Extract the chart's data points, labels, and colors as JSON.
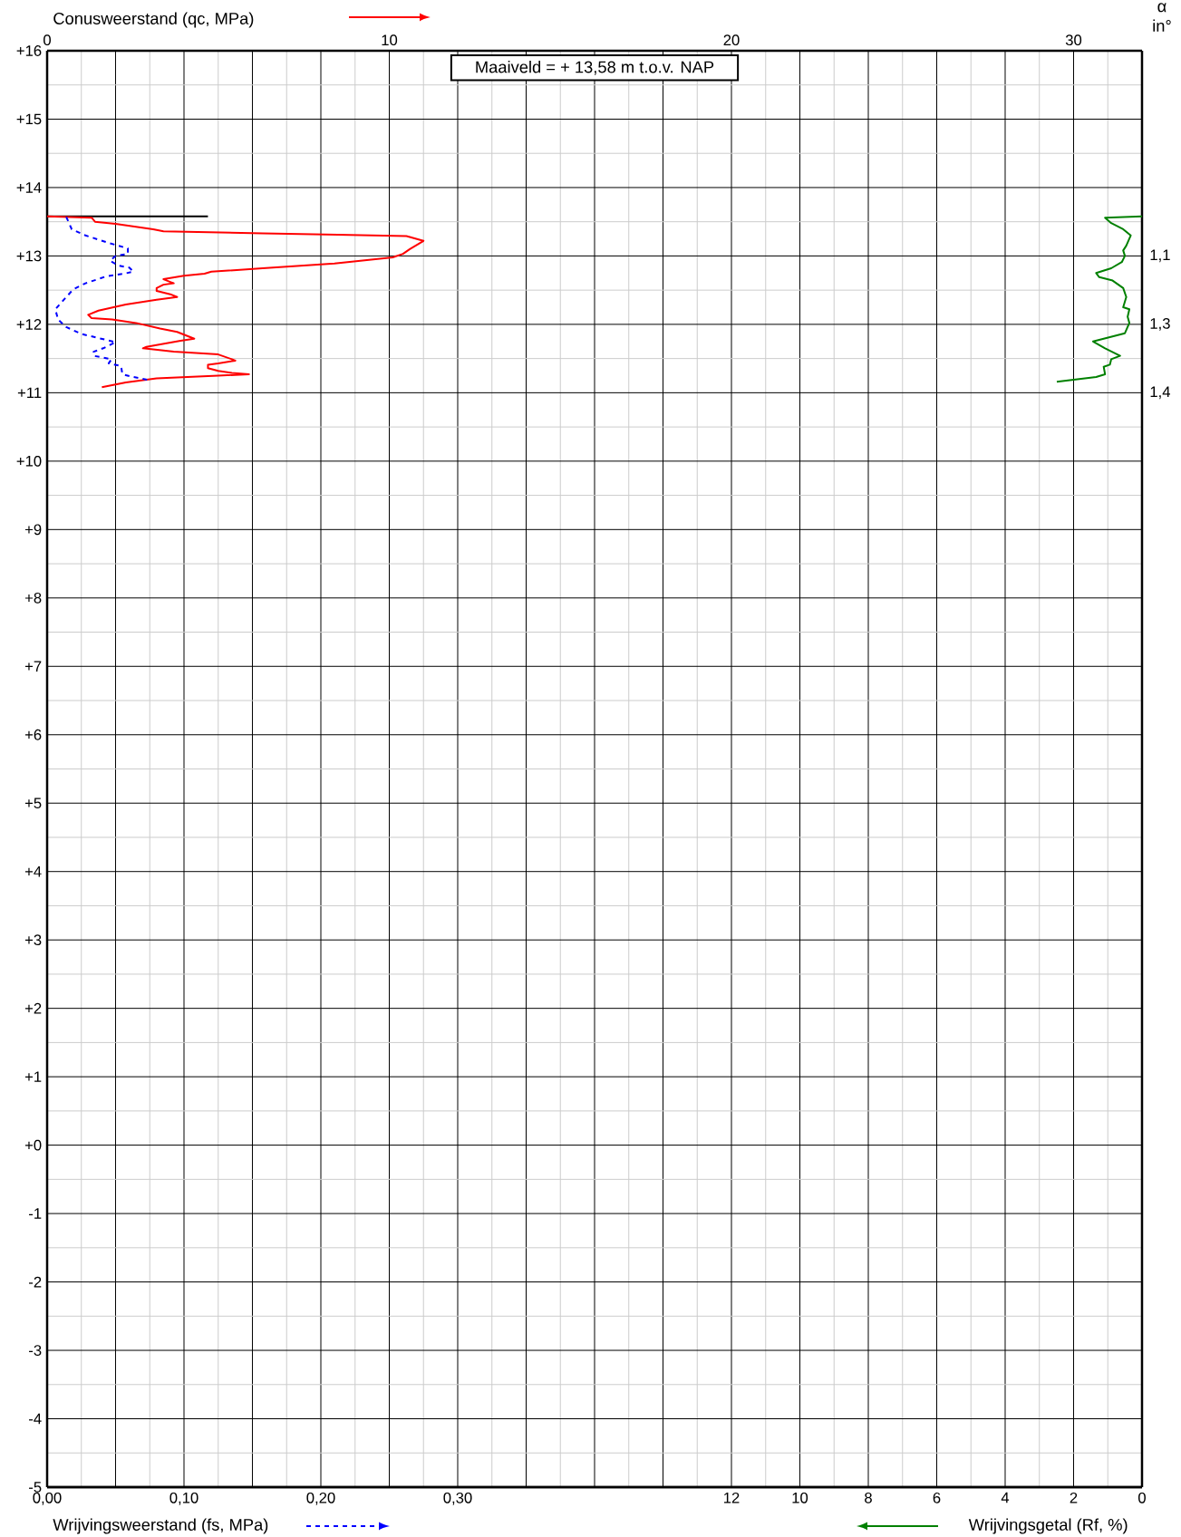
{
  "chart_data": [
    {
      "type": "line",
      "marker": "none",
      "grid": true,
      "annotations": [
        "Maaiveld = + 13,58 m t.o.v. NAP"
      ],
      "x2label": "Conusweerstand (qc, MPa)",
      "x2lim": [
        0,
        32
      ],
      "x2ticks": [
        0,
        {
          "value": 2,
          "label": null
        },
        {
          "value": 4,
          "label": null
        },
        {
          "value": 6,
          "label": null
        },
        {
          "value": 8,
          "label": null
        },
        10,
        {
          "value": 12,
          "label": null
        },
        {
          "value": 14,
          "label": null
        },
        {
          "value": 16,
          "label": null
        },
        {
          "value": 18,
          "label": null
        },
        20,
        {
          "value": 22,
          "label": null
        },
        {
          "value": 24,
          "label": null
        },
        {
          "value": 26,
          "label": null
        },
        {
          "value": 28,
          "label": null
        },
        30,
        {
          "value": 32,
          "label": null
        }
      ],
      "xlabel": "Wrijvingsweerstand (fs, MPa)",
      "xlim": [
        0,
        0.8
      ],
      "xticks": [
        {
          "value": 0,
          "label": "0,00"
        },
        {
          "value": 0.1,
          "label": "0,10"
        },
        {
          "value": 0.2,
          "label": "0,20"
        },
        {
          "value": 0.3,
          "label": "0,30"
        }
      ],
      "ylim": [
        -5,
        16
      ],
      "yticks": [
        {
          "value": 16,
          "label": "+16"
        },
        {
          "value": 15,
          "label": "+15"
        },
        {
          "value": 14,
          "label": "+14"
        },
        {
          "value": 13,
          "label": "+13"
        },
        {
          "value": 12,
          "label": "+12"
        },
        {
          "value": 11,
          "label": "+11"
        },
        {
          "value": 10,
          "label": "+10"
        },
        {
          "value": 9,
          "label": "+9"
        },
        {
          "value": 8,
          "label": "+8"
        },
        {
          "value": 7,
          "label": "+7"
        },
        {
          "value": 6,
          "label": "+6"
        },
        {
          "value": 5,
          "label": "+5"
        },
        {
          "value": 4,
          "label": "+4"
        },
        {
          "value": 3,
          "label": "+3"
        },
        {
          "value": 2,
          "label": "+2"
        },
        {
          "value": 1,
          "label": "+1"
        },
        {
          "value": 0,
          "label": "+0"
        },
        -1,
        -2,
        -3,
        -4,
        -5
      ],
      "series": [
        {
          "axis": "x2",
          "color": "#000000",
          "x": [
            0,
            4.7
          ],
          "values": [
            13.58,
            13.58
          ]
        },
        {
          "axis": "x2",
          "color": "#ff0000",
          "x": [
            0,
            1.3,
            1.4,
            2.0,
            3.1,
            3.4,
            6.3,
            8.5,
            10.5,
            11.0,
            10.6,
            10.4,
            10.1,
            8.4,
            6.3,
            4.8,
            4.6,
            4.0,
            3.4,
            3.7,
            3.4,
            3.2,
            3.2,
            3.6,
            3.8,
            3.2,
            2.3,
            1.5,
            1.2,
            1.3,
            1.9,
            2.6,
            3.3,
            3.8,
            4.0,
            4.3,
            3.9,
            2.9,
            2.8,
            3.7,
            5.0,
            5.4,
            5.5,
            5.0,
            4.7,
            4.7,
            5.0,
            5.4,
            5.9,
            5.0,
            3.2,
            2.3,
            2.0,
            1.6
          ],
          "values": [
            13.58,
            13.56,
            13.5,
            13.47,
            13.39,
            13.36,
            13.33,
            13.31,
            13.29,
            13.22,
            13.1,
            13.03,
            12.98,
            12.89,
            12.82,
            12.77,
            12.74,
            12.71,
            12.66,
            12.6,
            12.58,
            12.53,
            12.49,
            12.44,
            12.4,
            12.36,
            12.29,
            12.2,
            12.14,
            12.09,
            12.07,
            12.02,
            11.94,
            11.89,
            11.85,
            11.79,
            11.76,
            11.67,
            11.65,
            11.6,
            11.56,
            11.49,
            11.47,
            11.43,
            11.41,
            11.36,
            11.32,
            11.29,
            11.27,
            11.25,
            11.21,
            11.15,
            11.12,
            11.08
          ]
        },
        {
          "color": "#0000ff",
          "line_style": "dashed",
          "x": [
            0.014,
            0.018,
            0.028,
            0.045,
            0.059,
            0.059,
            0.05,
            0.046,
            0.052,
            0.06,
            0.063,
            0.056,
            0.043,
            0.028,
            0.019,
            0.01,
            0.006,
            0.008,
            0.014,
            0.025,
            0.05,
            0.041,
            0.034,
            0.034,
            0.047,
            0.045,
            0.054,
            0.055,
            0.063,
            0.073
          ],
          "values": [
            13.57,
            13.39,
            13.3,
            13.19,
            13.11,
            13.03,
            13.0,
            12.93,
            12.86,
            12.83,
            12.77,
            12.74,
            12.7,
            12.6,
            12.51,
            12.31,
            12.22,
            12.07,
            11.96,
            11.86,
            11.74,
            11.65,
            11.6,
            11.54,
            11.49,
            11.43,
            11.39,
            11.27,
            11.23,
            11.19
          ]
        }
      ]
    },
    {
      "type": "line",
      "marker": "none",
      "tick_labels": "x",
      "annotations": [
        "α in°",
        "1,1",
        "1,3",
        "1,4"
      ],
      "xlabel": "Wrijvingsgetal (Rf, %)",
      "xlim": [
        32,
        0
      ],
      "xticks": [
        12,
        10,
        8,
        6,
        4,
        2,
        0
      ],
      "ylim": [
        -5,
        16
      ],
      "series": [
        {
          "color": "#008000",
          "x": [
            0.0,
            1.08,
            0.9,
            0.55,
            0.33,
            0.46,
            0.55,
            0.5,
            0.59,
            0.9,
            1.34,
            1.25,
            0.86,
            0.55,
            0.46,
            0.55,
            0.37,
            0.42,
            0.37,
            0.5,
            1.43,
            1.08,
            0.64,
            0.9,
            0.94,
            1.12,
            1.08,
            1.34,
            2.49
          ],
          "values": [
            13.58,
            13.56,
            13.48,
            13.39,
            13.3,
            13.15,
            13.08,
            13.0,
            12.91,
            12.82,
            12.75,
            12.69,
            12.64,
            12.53,
            12.4,
            12.25,
            12.22,
            12.11,
            12.02,
            11.87,
            11.75,
            11.65,
            11.54,
            11.49,
            11.41,
            11.38,
            11.27,
            11.23,
            11.16
          ]
        }
      ]
    }
  ]
}
